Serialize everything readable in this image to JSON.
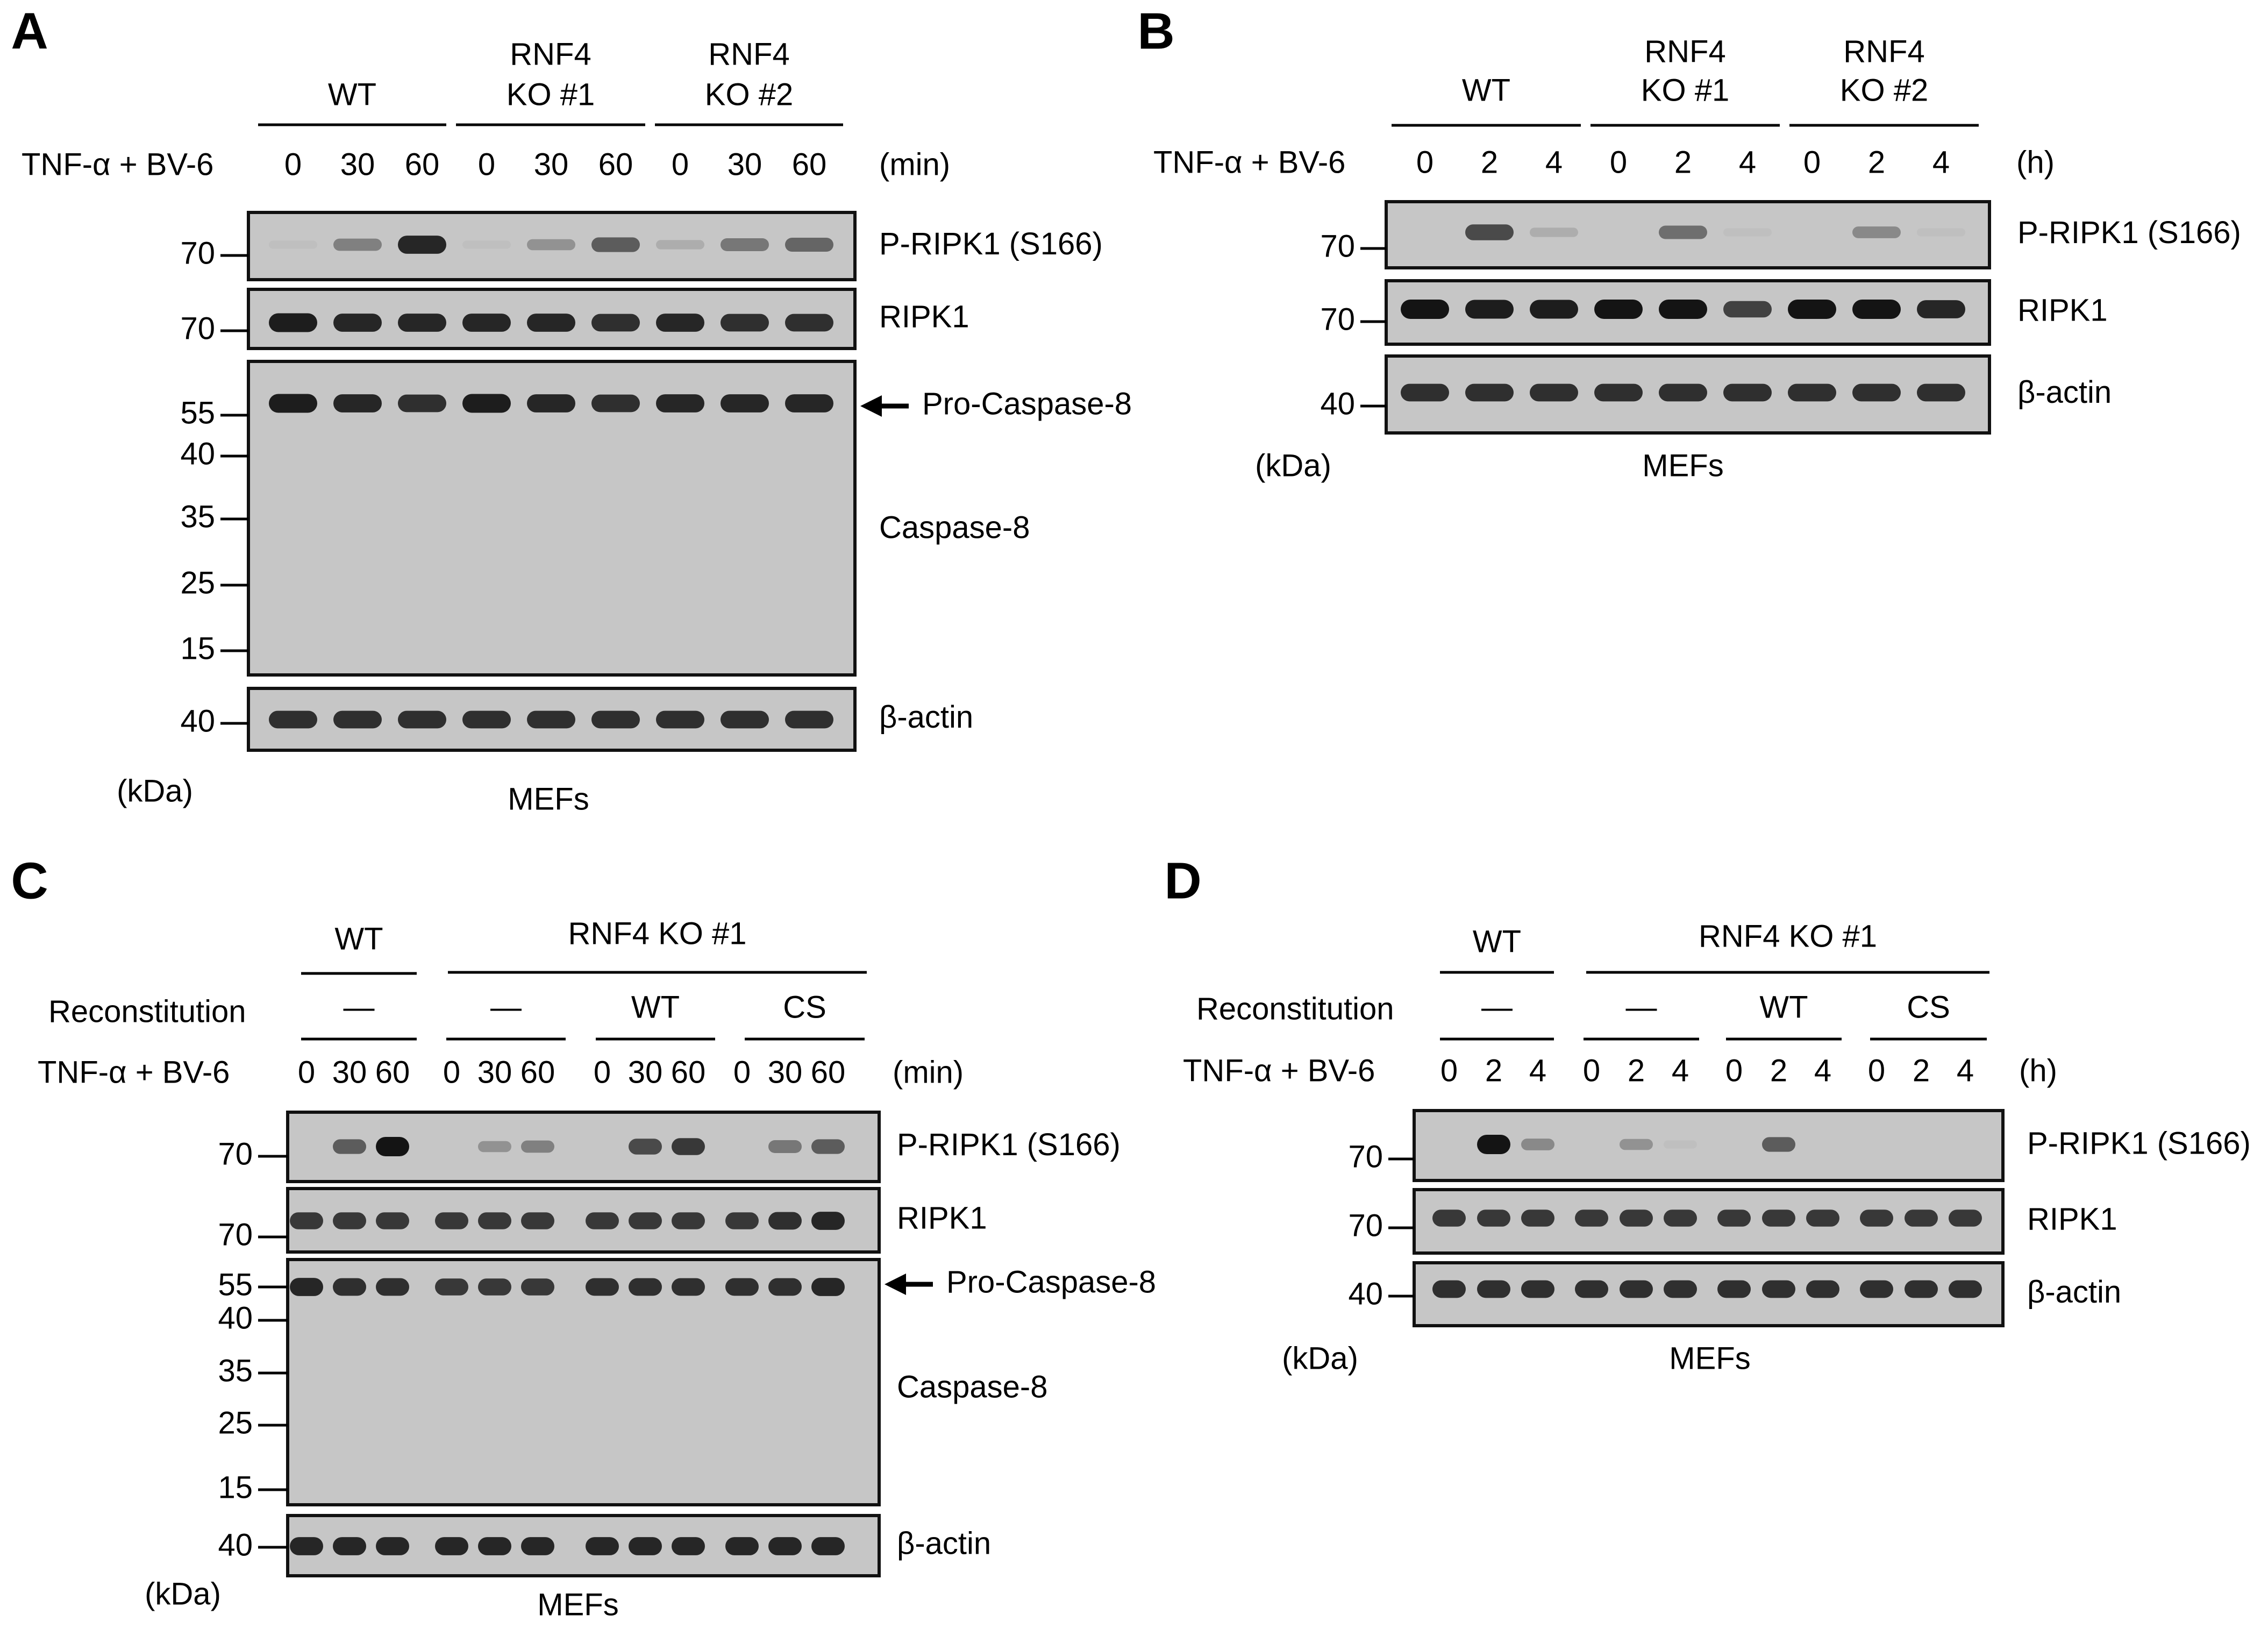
{
  "panels": [
    {
      "letter": "A",
      "groups": [
        {
          "label": [
            "WT"
          ]
        },
        {
          "label": [
            "RNF4",
            "KO #1"
          ]
        },
        {
          "label": [
            "RNF4",
            "KO #2"
          ]
        }
      ],
      "treatment": "TNF-α + BV-6",
      "times": [
        "0",
        "30",
        "60",
        "0",
        "30",
        "60",
        "0",
        "30",
        "60"
      ],
      "unit": "(min)",
      "blots": [
        {
          "label": "P-RIPK1 (S166)",
          "markers": [
            "70"
          ],
          "intensities": [
            0.05,
            0.4,
            0.9,
            0.05,
            0.3,
            0.6,
            0.15,
            0.45,
            0.55
          ]
        },
        {
          "label": "RIPK1",
          "markers": [
            "70"
          ],
          "intensities": [
            0.95,
            0.9,
            0.9,
            0.9,
            0.9,
            0.85,
            0.9,
            0.85,
            0.85
          ]
        },
        {
          "label": "Caspase-8",
          "markers": [
            "55",
            "40",
            "35",
            "25",
            "15"
          ],
          "arrow_label": "Pro-Caspase-8",
          "intensities": [
            0.95,
            0.9,
            0.85,
            0.95,
            0.9,
            0.85,
            0.9,
            0.9,
            0.9
          ]
        },
        {
          "label": "β-actin",
          "markers": [
            "40"
          ],
          "intensities": [
            0.85,
            0.85,
            0.85,
            0.85,
            0.85,
            0.85,
            0.85,
            0.85,
            0.85
          ]
        }
      ],
      "kda": "(kDa)",
      "cell": "MEFs"
    },
    {
      "letter": "B",
      "groups": [
        {
          "label": [
            "WT"
          ]
        },
        {
          "label": [
            "RNF4",
            "KO #1"
          ]
        },
        {
          "label": [
            "RNF4",
            "KO #2"
          ]
        }
      ],
      "treatment": "TNF-α + BV-6",
      "times": [
        "0",
        "2",
        "4",
        "0",
        "2",
        "4",
        "0",
        "2",
        "4"
      ],
      "unit": "(h)",
      "blots": [
        {
          "label": "P-RIPK1 (S166)",
          "markers": [
            "70"
          ],
          "intensities": [
            0.0,
            0.7,
            0.15,
            0.0,
            0.5,
            0.05,
            0.0,
            0.35,
            0.05
          ]
        },
        {
          "label": "RIPK1",
          "markers": [
            "70"
          ],
          "intensities": [
            1.0,
            0.95,
            0.95,
            1.0,
            1.0,
            0.75,
            1.0,
            1.0,
            0.9
          ]
        },
        {
          "label": "β-actin",
          "markers": [
            "40"
          ],
          "intensities": [
            0.85,
            0.85,
            0.85,
            0.85,
            0.85,
            0.85,
            0.85,
            0.85,
            0.85
          ]
        }
      ],
      "kda": "(kDa)",
      "cell": "MEFs"
    },
    {
      "letter": "C",
      "top_groups": [
        {
          "label": "WT"
        },
        {
          "label": "RNF4 KO #1"
        }
      ],
      "reconstitution_label": "Reconstitution",
      "recon_groups": [
        "—",
        "—",
        "WT",
        "CS"
      ],
      "treatment": "TNF-α + BV-6",
      "times": [
        "0",
        "30",
        "60",
        "0",
        "30",
        "60",
        "0",
        "30",
        "60",
        "0",
        "30",
        "60"
      ],
      "unit": "(min)",
      "blots": [
        {
          "label": "P-RIPK1 (S166)",
          "markers": [
            "70"
          ],
          "intensities": [
            0.0,
            0.6,
            1.0,
            0.0,
            0.3,
            0.4,
            0.0,
            0.7,
            0.8,
            0.0,
            0.45,
            0.6
          ]
        },
        {
          "label": "RIPK1",
          "markers": [
            "70"
          ],
          "intensities": [
            0.8,
            0.8,
            0.8,
            0.8,
            0.8,
            0.8,
            0.8,
            0.8,
            0.8,
            0.8,
            0.85,
            0.9
          ]
        },
        {
          "label": "Caspase-8",
          "markers": [
            "55",
            "40",
            "35",
            "25",
            "15"
          ],
          "arrow_label": "Pro-Caspase-8",
          "intensities": [
            0.9,
            0.85,
            0.85,
            0.8,
            0.8,
            0.8,
            0.85,
            0.85,
            0.85,
            0.85,
            0.85,
            0.9
          ]
        },
        {
          "label": "β-actin",
          "markers": [
            "40"
          ],
          "intensities": [
            0.9,
            0.9,
            0.9,
            0.9,
            0.9,
            0.9,
            0.9,
            0.9,
            0.9,
            0.9,
            0.9,
            0.9
          ]
        }
      ],
      "kda": "(kDa)",
      "cell": "MEFs"
    },
    {
      "letter": "D",
      "top_groups": [
        {
          "label": "WT"
        },
        {
          "label": "RNF4 KO #1"
        }
      ],
      "reconstitution_label": "Reconstitution",
      "recon_groups": [
        "—",
        "—",
        "WT",
        "CS"
      ],
      "treatment": "TNF-α + BV-6",
      "times": [
        "0",
        "2",
        "4",
        "0",
        "2",
        "4",
        "0",
        "2",
        "4",
        "0",
        "2",
        "4"
      ],
      "unit": "(h)",
      "blots": [
        {
          "label": "P-RIPK1 (S166)",
          "markers": [
            "70"
          ],
          "intensities": [
            0.0,
            1.0,
            0.35,
            0.0,
            0.3,
            0.05,
            0.0,
            0.6,
            0.0,
            0.0,
            0.0,
            0.0
          ]
        },
        {
          "label": "RIPK1",
          "markers": [
            "70"
          ],
          "intensities": [
            0.8,
            0.8,
            0.8,
            0.8,
            0.8,
            0.8,
            0.8,
            0.8,
            0.8,
            0.8,
            0.8,
            0.8
          ]
        },
        {
          "label": "β-actin",
          "markers": [
            "40"
          ],
          "intensities": [
            0.85,
            0.85,
            0.85,
            0.85,
            0.85,
            0.85,
            0.85,
            0.85,
            0.85,
            0.85,
            0.85,
            0.85
          ]
        }
      ],
      "kda": "(kDa)",
      "cell": "MEFs"
    }
  ]
}
